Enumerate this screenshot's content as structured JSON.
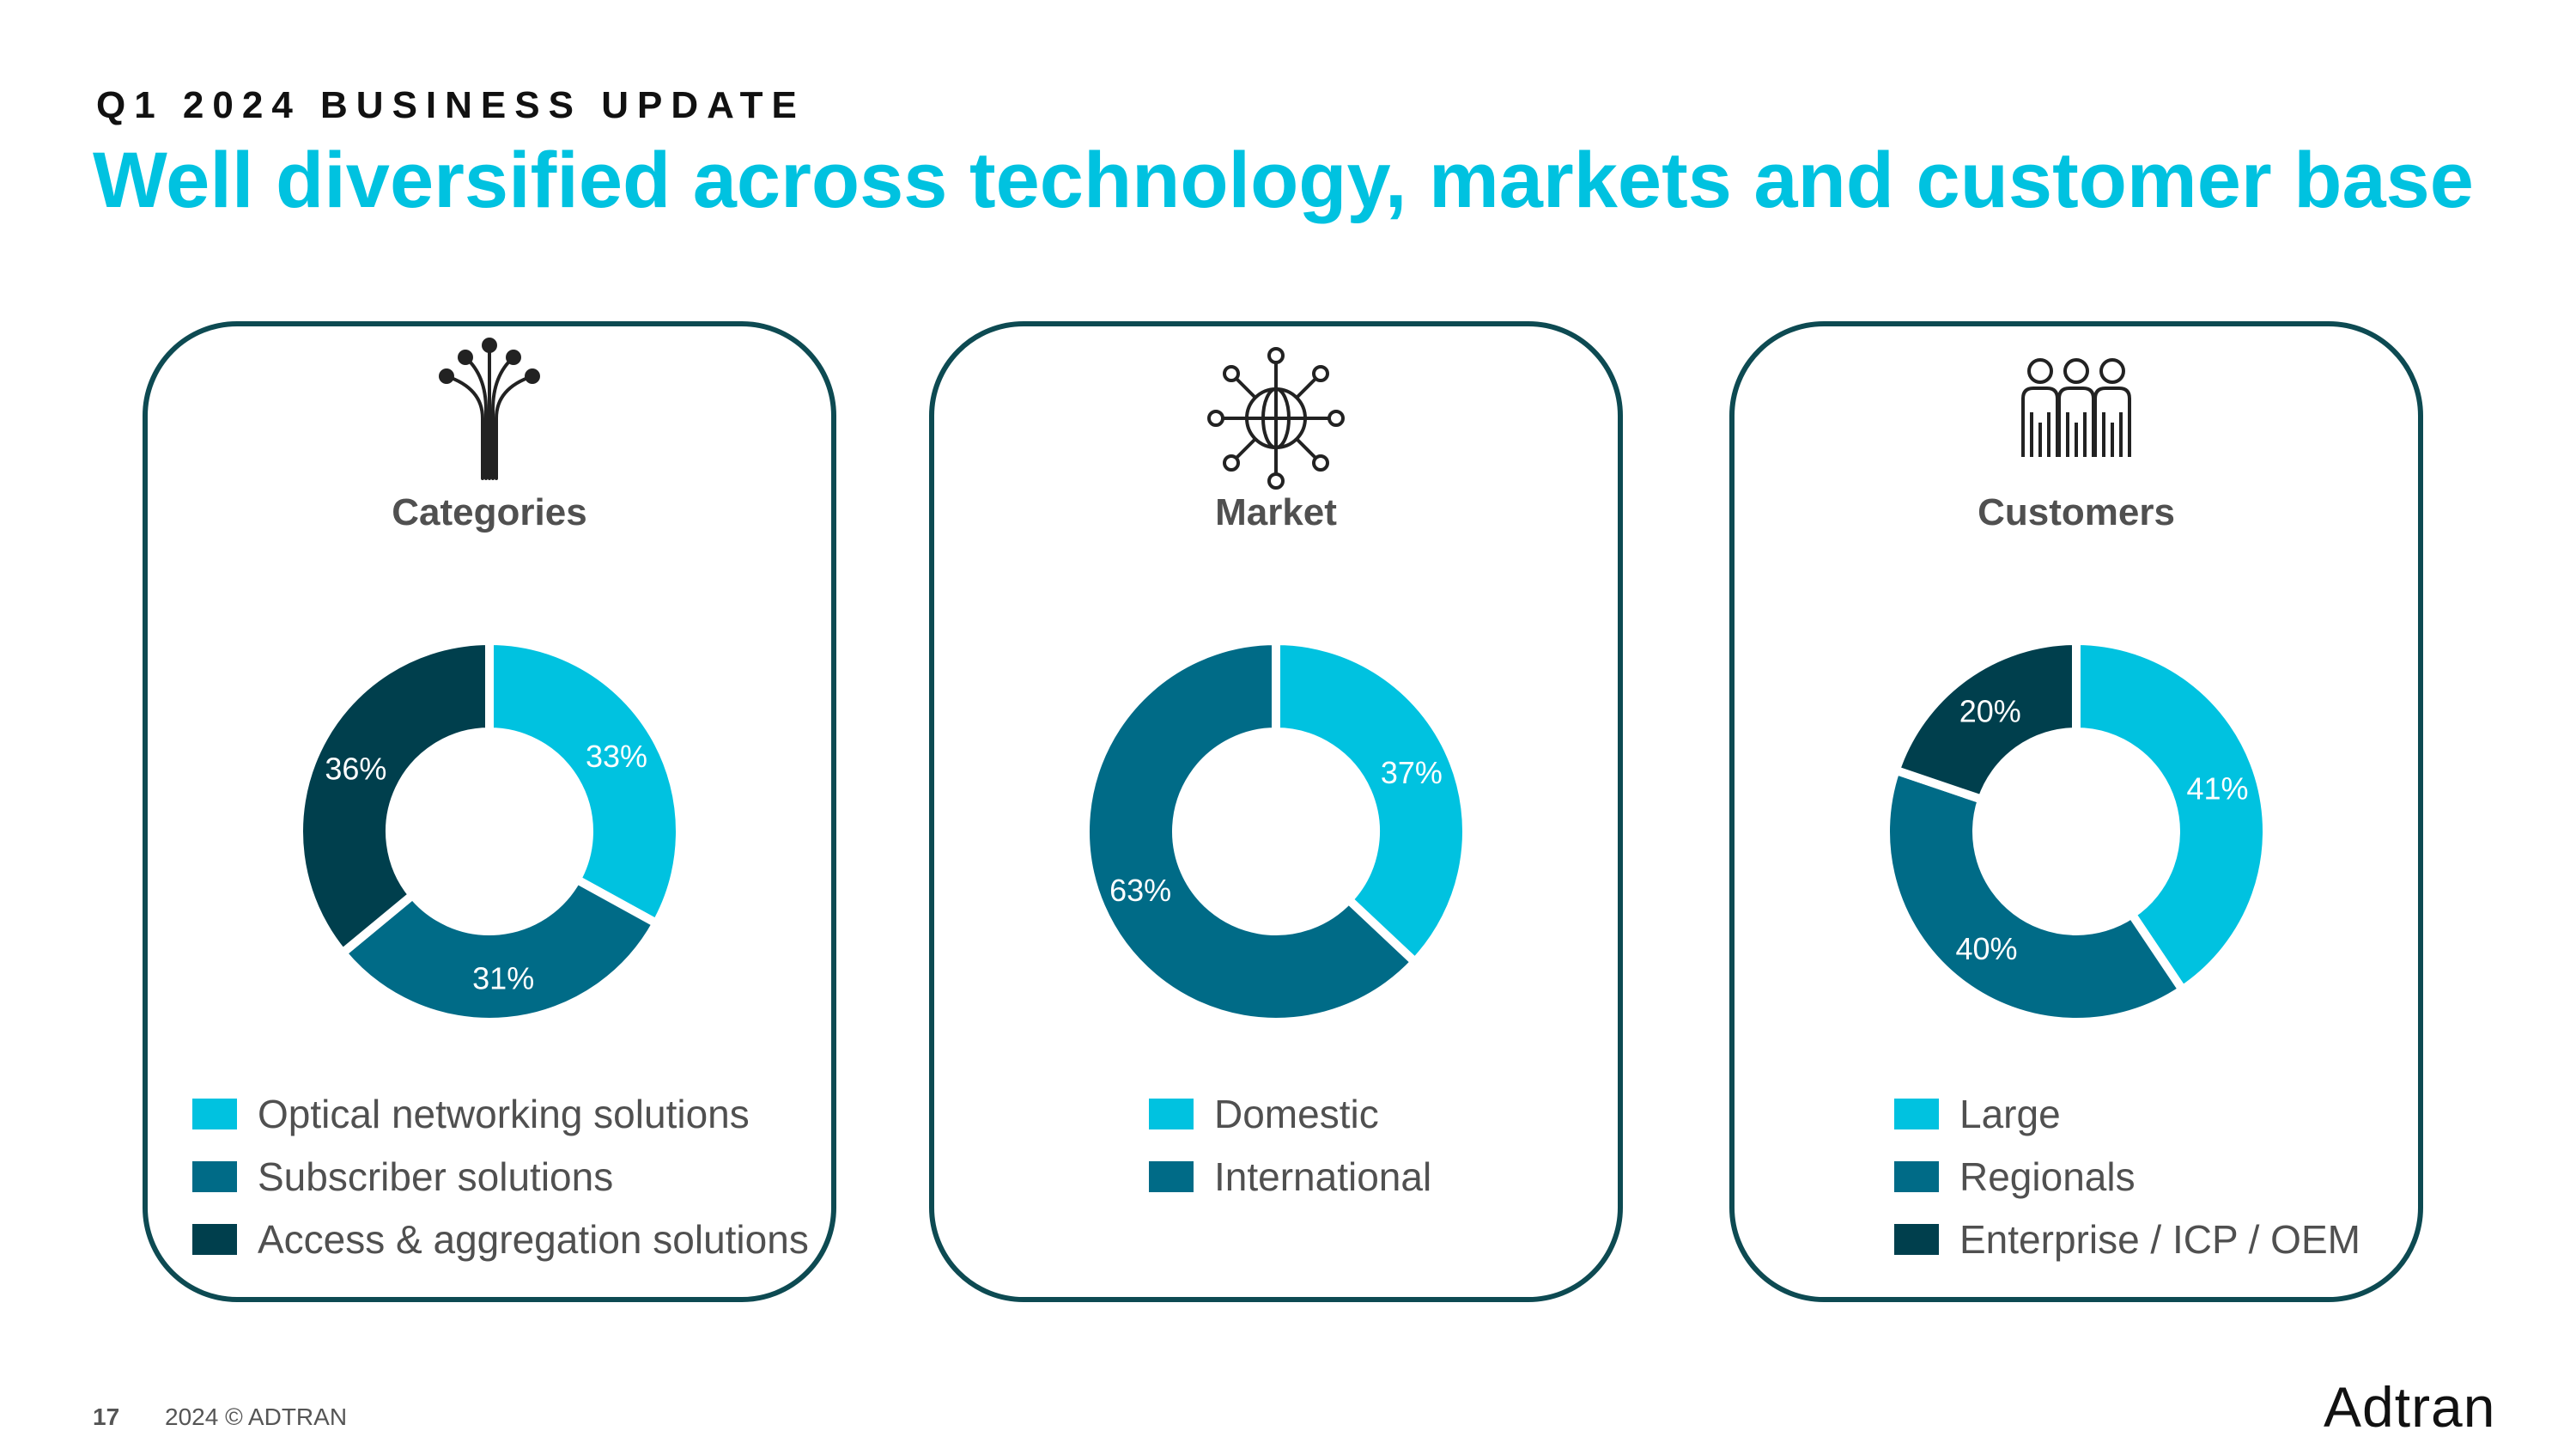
{
  "header": {
    "eyebrow": "Q1 2024 BUSINESS UPDATE",
    "title": "Well diversified across technology, markets and customer base"
  },
  "colors": {
    "cyan": "#00c2e0",
    "teal": "#006b87",
    "dark": "#003f4d",
    "border": "#0d4a52"
  },
  "panels": {
    "categories": {
      "title": "Categories",
      "icon": "fiber-optic-icon"
    },
    "market": {
      "title": "Market",
      "icon": "globe-network-icon"
    },
    "customers": {
      "title": "Customers",
      "icon": "people-group-icon"
    }
  },
  "chart_data": [
    {
      "type": "pie",
      "title": "Categories",
      "categories": [
        "Optical networking solutions",
        "Subscriber solutions",
        "Access & aggregation solutions"
      ],
      "values": [
        33,
        31,
        36
      ],
      "labels": [
        "33%",
        "31%",
        "36%"
      ],
      "colors": [
        "#00c2e0",
        "#006b87",
        "#003f4d"
      ]
    },
    {
      "type": "pie",
      "title": "Market",
      "categories": [
        "Domestic",
        "International"
      ],
      "values": [
        37,
        63
      ],
      "labels": [
        "37%",
        "63%"
      ],
      "colors": [
        "#00c2e0",
        "#006b87"
      ]
    },
    {
      "type": "pie",
      "title": "Customers",
      "categories": [
        "Large",
        "Regionals",
        "Enterprise / ICP / OEM"
      ],
      "values": [
        41,
        40,
        20
      ],
      "labels": [
        "41%",
        "40%",
        "20%"
      ],
      "colors": [
        "#00c2e0",
        "#006b87",
        "#003f4d"
      ]
    }
  ],
  "footer": {
    "page": "17",
    "copyright": "2024 © ADTRAN",
    "logo": "Adtran"
  }
}
